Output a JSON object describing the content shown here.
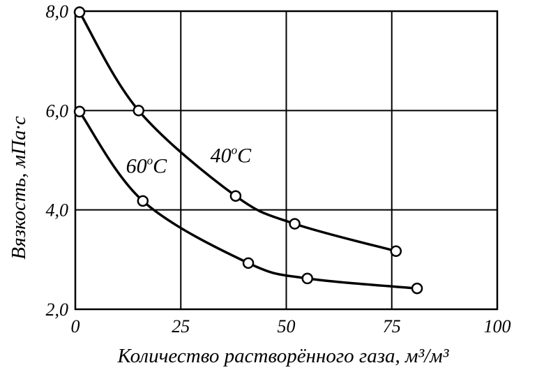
{
  "chart_data": {
    "type": "line",
    "xlabel": "Количество растворённого газа, м³/м³",
    "ylabel": "Вязкость, мПа·с",
    "xlim": [
      0,
      100
    ],
    "ylim": [
      2.0,
      8.0
    ],
    "x_ticks": [
      0,
      25,
      50,
      75,
      100
    ],
    "x_tick_labels": [
      "0",
      "25",
      "50",
      "75",
      "100"
    ],
    "y_ticks": [
      2.0,
      4.0,
      6.0,
      8.0
    ],
    "y_tick_labels": [
      "2,0",
      "4,0",
      "6,0",
      "8,0"
    ],
    "grid": true,
    "series": [
      {
        "name": "40°C",
        "label_main": "40",
        "label_sup": "o",
        "label_tail": "C",
        "label_anchor": {
          "x": 32,
          "y": 4.96
        },
        "x": [
          1,
          15,
          38,
          52,
          76
        ],
        "y": [
          7.98,
          6.0,
          4.28,
          3.72,
          3.17
        ]
      },
      {
        "name": "60°C",
        "label_main": "60",
        "label_sup": "o",
        "label_tail": "C",
        "label_anchor": {
          "x": 12,
          "y": 4.75
        },
        "x": [
          1,
          16,
          41,
          55,
          81
        ],
        "y": [
          5.98,
          4.18,
          2.93,
          2.62,
          2.42
        ]
      }
    ],
    "colors": {
      "line": "#000000",
      "grid": "#000000",
      "marker_fill": "#ffffff"
    }
  }
}
